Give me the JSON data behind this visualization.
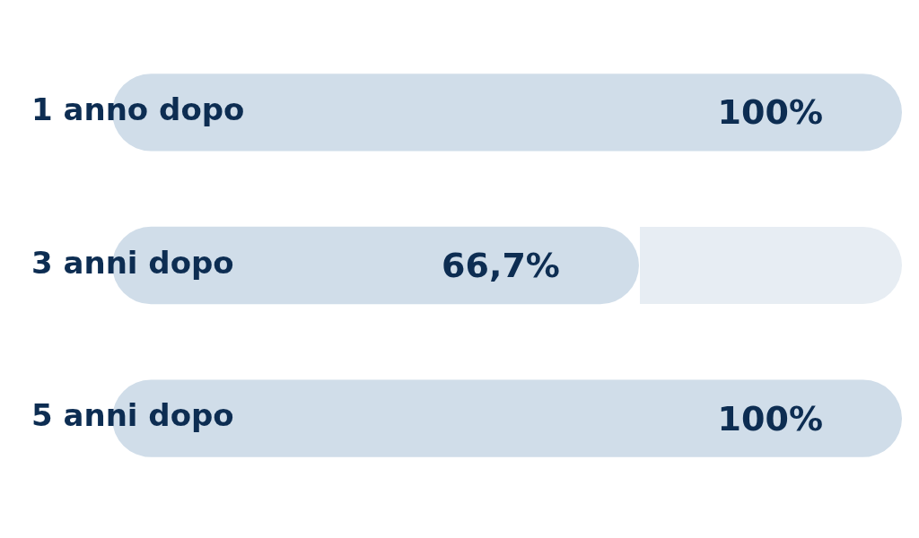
{
  "chart_data": {
    "type": "bar",
    "orientation": "horizontal",
    "categories": [
      "1 anno dopo",
      "3 anni dopo",
      "5 anni dopo"
    ],
    "values": [
      100,
      66.7,
      100
    ],
    "color": "#d0dde9",
    "xlim": [
      0,
      100
    ],
    "value_labels": [
      "100%",
      "66,7%",
      "100%"
    ],
    "tick_labels": "y",
    "legend": false
  }
}
